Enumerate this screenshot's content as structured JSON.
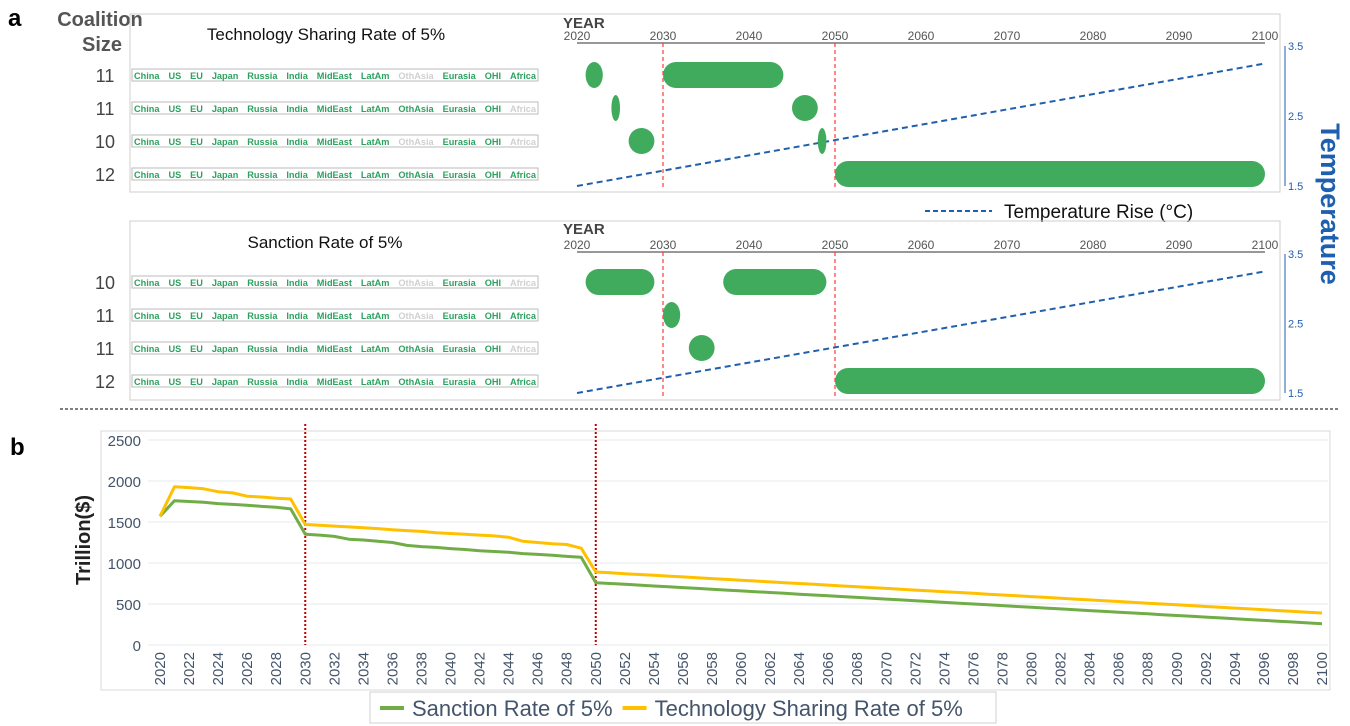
{
  "panel_label_a": "a",
  "panel_label_b": "b",
  "shared_a": {
    "row_header": "Coalition Size",
    "temperature_axis_label": "Temperature",
    "temperature_ticks": [
      1.5,
      2.5,
      3.5
    ],
    "temperature_range": [
      1.5,
      3.5
    ],
    "temperature_legend": "Temperature Rise (°C)",
    "temperature_color": "#1f5fb0",
    "bar_color": "#41ab5d",
    "included_color": "#2ca25f",
    "excluded_color": "#d0d0d0",
    "vline_color": "#ff3b3b"
  },
  "chart_data": [
    {
      "type": "gantt",
      "title": "Technology Sharing Rate of 5%",
      "x_label": "YEAR",
      "x_ticks": [
        2020,
        2030,
        2040,
        2050,
        2060,
        2070,
        2080,
        2090,
        2100
      ],
      "vlines": [
        2030,
        2050
      ],
      "regions": [
        "China",
        "US",
        "EU",
        "Japan",
        "Russia",
        "India",
        "MidEast",
        "LatAm",
        "OthAsia",
        "Eurasia",
        "OHI",
        "Africa"
      ],
      "temperature_series": {
        "x": [
          2020,
          2100
        ],
        "y": [
          1.5,
          3.25
        ]
      },
      "rows": [
        {
          "size": "11",
          "excluded": [
            "OthAsia"
          ],
          "bars": [
            [
              2021,
              2023
            ],
            [
              2030,
              2044
            ]
          ]
        },
        {
          "size": "11",
          "excluded": [
            "Africa"
          ],
          "bars": [
            [
              2024,
              2025
            ],
            [
              2045,
              2048
            ]
          ]
        },
        {
          "size": "10",
          "excluded": [
            "OthAsia",
            "Africa"
          ],
          "bars": [
            [
              2026,
              2029
            ],
            [
              2048,
              2049
            ]
          ]
        },
        {
          "size": "12",
          "excluded": [],
          "bars": [
            [
              2050,
              2100
            ]
          ]
        }
      ]
    },
    {
      "type": "gantt",
      "title": "Sanction Rate of 5%",
      "x_label": "YEAR",
      "x_ticks": [
        2020,
        2030,
        2040,
        2050,
        2060,
        2070,
        2080,
        2090,
        2100
      ],
      "vlines": [
        2030,
        2050
      ],
      "regions": [
        "China",
        "US",
        "EU",
        "Japan",
        "Russia",
        "India",
        "MidEast",
        "LatAm",
        "OthAsia",
        "Eurasia",
        "OHI",
        "Africa"
      ],
      "temperature_series": {
        "x": [
          2020,
          2100
        ],
        "y": [
          1.5,
          3.25
        ]
      },
      "rows": [
        {
          "size": "10",
          "excluded": [
            "OthAsia",
            "Africa"
          ],
          "bars": [
            [
              2021,
              2029
            ],
            [
              2037,
              2049
            ]
          ]
        },
        {
          "size": "11",
          "excluded": [
            "OthAsia"
          ],
          "bars": [
            [
              2030,
              2032
            ]
          ]
        },
        {
          "size": "11",
          "excluded": [
            "Africa"
          ],
          "bars": [
            [
              2033,
              2036
            ]
          ]
        },
        {
          "size": "12",
          "excluded": [],
          "bars": [
            [
              2050,
              2100
            ]
          ]
        }
      ]
    },
    {
      "type": "line",
      "ylabel": "Trillion($)",
      "ylim": [
        0,
        2500
      ],
      "yticks": [
        0,
        500,
        1000,
        1500,
        2000,
        2500
      ],
      "grid": true,
      "legend": "bottom",
      "vlines": [
        2030,
        2050
      ],
      "vline_color": "#c00000",
      "x": [
        2020,
        2021,
        2022,
        2023,
        2024,
        2025,
        2026,
        2027,
        2028,
        2029,
        2030,
        2031,
        2032,
        2033,
        2034,
        2035,
        2036,
        2037,
        2038,
        2039,
        2040,
        2041,
        2042,
        2043,
        2044,
        2045,
        2046,
        2047,
        2048,
        2049,
        2050,
        2051,
        2052,
        2053,
        2054,
        2055,
        2056,
        2057,
        2058,
        2059,
        2060,
        2061,
        2062,
        2063,
        2064,
        2065,
        2066,
        2067,
        2068,
        2069,
        2070,
        2071,
        2072,
        2073,
        2074,
        2075,
        2076,
        2077,
        2078,
        2079,
        2080,
        2081,
        2082,
        2083,
        2084,
        2085,
        2086,
        2087,
        2088,
        2089,
        2090,
        2091,
        2092,
        2093,
        2094,
        2095,
        2096,
        2097,
        2098,
        2099,
        2100
      ],
      "series": [
        {
          "name": "Sanction Rate of 5%",
          "color": "#70ad47",
          "values": [
            1570,
            1760,
            1750,
            1740,
            1725,
            1715,
            1705,
            1690,
            1680,
            1660,
            1350,
            1340,
            1325,
            1290,
            1280,
            1265,
            1250,
            1215,
            1200,
            1190,
            1175,
            1165,
            1150,
            1140,
            1130,
            1115,
            1105,
            1095,
            1080,
            1070,
            760,
            750,
            740,
            730,
            720,
            710,
            700,
            690,
            680,
            670,
            660,
            650,
            640,
            630,
            620,
            610,
            600,
            590,
            580,
            570,
            560,
            550,
            540,
            530,
            520,
            510,
            500,
            490,
            480,
            470,
            460,
            450,
            440,
            430,
            420,
            410,
            400,
            390,
            380,
            370,
            360,
            350,
            340,
            330,
            320,
            310,
            300,
            290,
            280,
            270,
            260
          ]
        },
        {
          "name": "Technology Sharing Rate of 5%",
          "color": "#ffc000",
          "values": [
            1570,
            1930,
            1920,
            1905,
            1870,
            1855,
            1815,
            1805,
            1790,
            1780,
            1470,
            1460,
            1450,
            1440,
            1430,
            1420,
            1405,
            1395,
            1385,
            1370,
            1360,
            1350,
            1340,
            1330,
            1315,
            1265,
            1250,
            1235,
            1225,
            1180,
            890,
            880,
            870,
            860,
            850,
            840,
            830,
            820,
            810,
            800,
            790,
            780,
            770,
            760,
            750,
            740,
            730,
            720,
            710,
            700,
            690,
            680,
            670,
            660,
            650,
            640,
            630,
            620,
            610,
            600,
            590,
            580,
            570,
            560,
            550,
            540,
            530,
            520,
            510,
            500,
            490,
            480,
            470,
            460,
            450,
            440,
            430,
            420,
            410,
            400,
            390
          ]
        }
      ]
    }
  ]
}
